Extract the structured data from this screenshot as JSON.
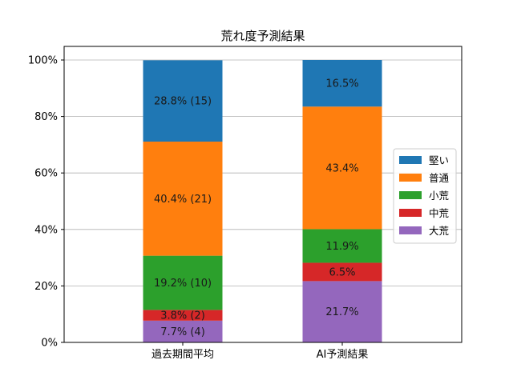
{
  "chart_data": {
    "type": "bar",
    "stacked": true,
    "title": "荒れ度予測結果",
    "xlabel": "",
    "ylabel": "",
    "ylim": [
      0,
      100
    ],
    "y_ticks": [
      "0%",
      "20%",
      "40%",
      "60%",
      "80%",
      "100%"
    ],
    "grid": "horizontal",
    "legend_position": "right",
    "categories": [
      "過去期間平均",
      "AI予測結果"
    ],
    "series": [
      {
        "name": "大荒",
        "color": "#9467bd",
        "values": [
          7.7,
          21.7
        ],
        "labels": [
          "7.7% (4)",
          "21.7%"
        ]
      },
      {
        "name": "中荒",
        "color": "#d62728",
        "values": [
          3.8,
          6.5
        ],
        "labels": [
          "3.8% (2)",
          "6.5%"
        ]
      },
      {
        "name": "小荒",
        "color": "#2ca02c",
        "values": [
          19.2,
          11.9
        ],
        "labels": [
          "19.2% (10)",
          "11.9%"
        ]
      },
      {
        "name": "普通",
        "color": "#ff7f0e",
        "values": [
          40.4,
          43.4
        ],
        "labels": [
          "40.4% (21)",
          "43.4%"
        ]
      },
      {
        "name": "堅い",
        "color": "#1f77b4",
        "values": [
          28.8,
          16.5
        ],
        "labels": [
          "28.8% (15)",
          "16.5%"
        ]
      }
    ],
    "legend_order": [
      "堅い",
      "普通",
      "小荒",
      "中荒",
      "大荒"
    ]
  }
}
